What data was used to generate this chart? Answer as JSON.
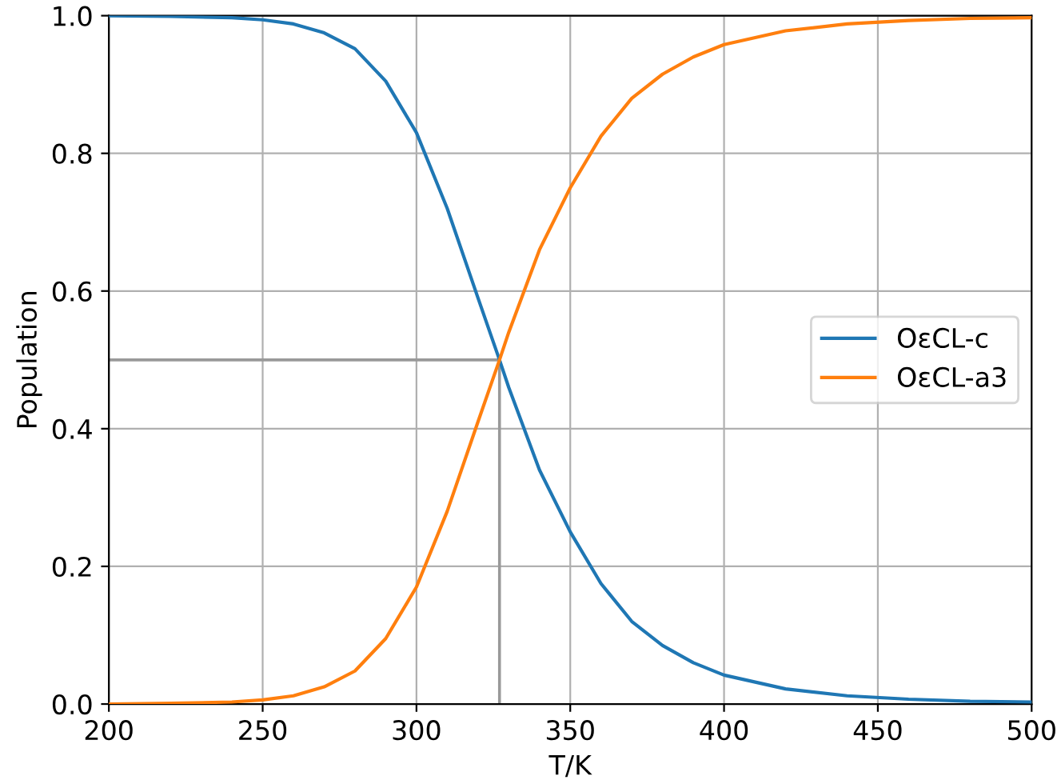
{
  "chart_data": {
    "type": "line",
    "xlabel": "T/K",
    "ylabel": "Population",
    "x": [
      200,
      220,
      240,
      250,
      260,
      270,
      280,
      290,
      300,
      310,
      320,
      327,
      330,
      340,
      350,
      360,
      370,
      380,
      390,
      400,
      420,
      440,
      460,
      480,
      500
    ],
    "series": [
      {
        "name": "OεCL-c",
        "color": "#1f77b4",
        "values": [
          1.0,
          0.999,
          0.997,
          0.994,
          0.988,
          0.975,
          0.952,
          0.905,
          0.83,
          0.72,
          0.59,
          0.5,
          0.46,
          0.34,
          0.25,
          0.175,
          0.12,
          0.085,
          0.06,
          0.042,
          0.022,
          0.012,
          0.007,
          0.004,
          0.003
        ]
      },
      {
        "name": "OεCL-a3",
        "color": "#ff7f0e",
        "values": [
          0.0,
          0.001,
          0.003,
          0.006,
          0.012,
          0.025,
          0.048,
          0.095,
          0.17,
          0.28,
          0.41,
          0.5,
          0.54,
          0.66,
          0.75,
          0.825,
          0.88,
          0.915,
          0.94,
          0.958,
          0.978,
          0.988,
          0.993,
          0.996,
          0.997
        ]
      }
    ],
    "ref_lines": [
      {
        "axis": "y",
        "value": 0.5,
        "color": "#999999"
      },
      {
        "axis": "x",
        "value": 327,
        "color": "#999999"
      }
    ],
    "xlim": [
      200,
      500
    ],
    "ylim": [
      0.0,
      1.0
    ],
    "xticks": [
      200,
      250,
      300,
      350,
      400,
      450,
      500
    ],
    "yticks": [
      {
        "value": 0.0,
        "label": "0.0"
      },
      {
        "value": 0.2,
        "label": "0.2"
      },
      {
        "value": 0.4,
        "label": "0.4"
      },
      {
        "value": 0.6,
        "label": "0.6"
      },
      {
        "value": 0.8,
        "label": "0.8"
      },
      {
        "value": 1.0,
        "label": "1.0"
      }
    ],
    "grid": true,
    "legend": "center right"
  }
}
